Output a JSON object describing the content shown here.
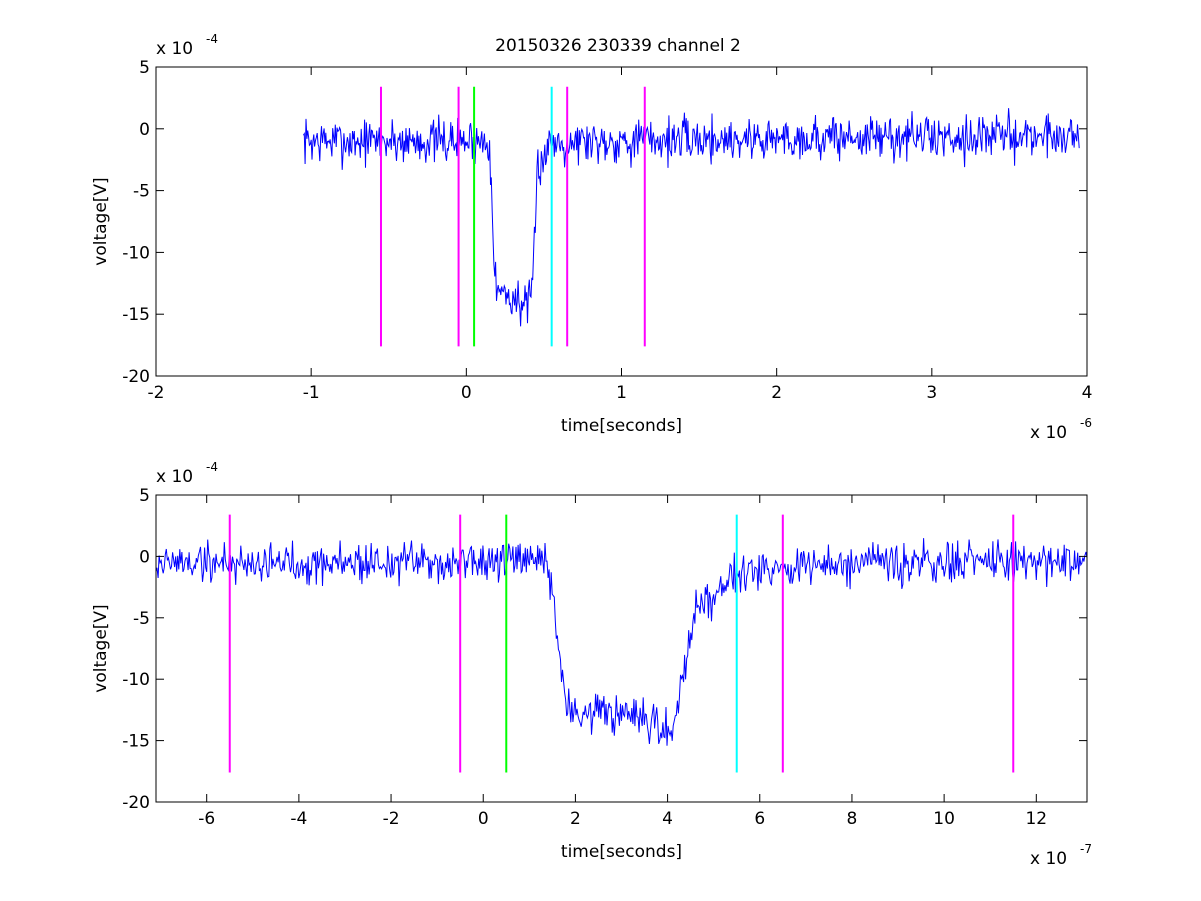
{
  "figure": {
    "title": "20150326 230339 channel 2"
  },
  "chart_data": [
    {
      "type": "line",
      "title": "20150326 230339 channel 2",
      "xlabel": "time[seconds]",
      "ylabel": "voltage[V]",
      "x_exponent_label": "x 10",
      "x_exponent": "-6",
      "y_exponent_label": "x 10",
      "y_exponent": "-4",
      "xlim": [
        -2,
        4
      ],
      "ylim": [
        -20,
        5
      ],
      "xticks": [
        -2,
        -1,
        0,
        1,
        2,
        3,
        4
      ],
      "yticks": [
        -20,
        -15,
        -10,
        -5,
        0,
        5
      ],
      "grid": false,
      "signal": {
        "color": "#0000ff",
        "x_start": -1.05,
        "x_end": 3.95,
        "baseline": -0.8,
        "noise_amplitude": 1.4,
        "segments": [
          {
            "x": -1.05,
            "y": -1.0
          },
          {
            "x": 0.15,
            "y": -1.0
          },
          {
            "x": 0.19,
            "y": -13.0
          },
          {
            "x": 0.42,
            "y": -14.5
          },
          {
            "x": 0.46,
            "y": -3.0
          },
          {
            "x": 0.55,
            "y": -1.0
          },
          {
            "x": 3.95,
            "y": -0.5
          }
        ]
      },
      "markers": [
        {
          "x": -0.55,
          "color": "#ff00ff",
          "y_from": -17.6,
          "y_to": 3.4
        },
        {
          "x": -0.05,
          "color": "#ff00ff",
          "y_from": -17.6,
          "y_to": 3.4
        },
        {
          "x": 0.05,
          "color": "#00ff00",
          "y_from": -17.6,
          "y_to": 3.4
        },
        {
          "x": 0.55,
          "color": "#00ffff",
          "y_from": -17.6,
          "y_to": 3.4
        },
        {
          "x": 0.65,
          "color": "#ff00ff",
          "y_from": -17.6,
          "y_to": 3.4
        },
        {
          "x": 1.15,
          "color": "#ff00ff",
          "y_from": -17.6,
          "y_to": 3.4
        }
      ]
    },
    {
      "type": "line",
      "title": "",
      "xlabel": "time[seconds]",
      "ylabel": "voltage[V]",
      "x_exponent_label": "x 10",
      "x_exponent": "-7",
      "y_exponent_label": "x 10",
      "y_exponent": "-4",
      "xlim": [
        -7.1,
        13.1
      ],
      "ylim": [
        -20,
        5
      ],
      "xticks": [
        -6,
        -4,
        -2,
        0,
        2,
        4,
        6,
        8,
        10,
        12
      ],
      "yticks": [
        -20,
        -15,
        -10,
        -5,
        0,
        5
      ],
      "grid": false,
      "signal": {
        "color": "#0000ff",
        "x_start": -7.1,
        "x_end": 13.1,
        "baseline": -0.5,
        "noise_amplitude": 1.3,
        "segments": [
          {
            "x": -7.1,
            "y": -0.5
          },
          {
            "x": 1.4,
            "y": -0.5
          },
          {
            "x": 1.5,
            "y": -3.0
          },
          {
            "x": 1.8,
            "y": -12.5
          },
          {
            "x": 3.0,
            "y": -13.0
          },
          {
            "x": 4.1,
            "y": -14.5
          },
          {
            "x": 4.3,
            "y": -10.0
          },
          {
            "x": 4.6,
            "y": -4.5
          },
          {
            "x": 5.5,
            "y": -1.0
          },
          {
            "x": 13.1,
            "y": -0.3
          }
        ]
      },
      "markers": [
        {
          "x": -5.5,
          "color": "#ff00ff",
          "y_from": -17.6,
          "y_to": 3.4
        },
        {
          "x": -0.5,
          "color": "#ff00ff",
          "y_from": -17.6,
          "y_to": 3.4
        },
        {
          "x": 0.5,
          "color": "#00ff00",
          "y_from": -17.6,
          "y_to": 3.4
        },
        {
          "x": 5.5,
          "color": "#00ffff",
          "y_from": -17.6,
          "y_to": 3.4
        },
        {
          "x": 6.5,
          "color": "#ff00ff",
          "y_from": -17.6,
          "y_to": 3.4
        },
        {
          "x": 11.5,
          "color": "#ff00ff",
          "y_from": -17.6,
          "y_to": 3.4
        }
      ]
    }
  ]
}
